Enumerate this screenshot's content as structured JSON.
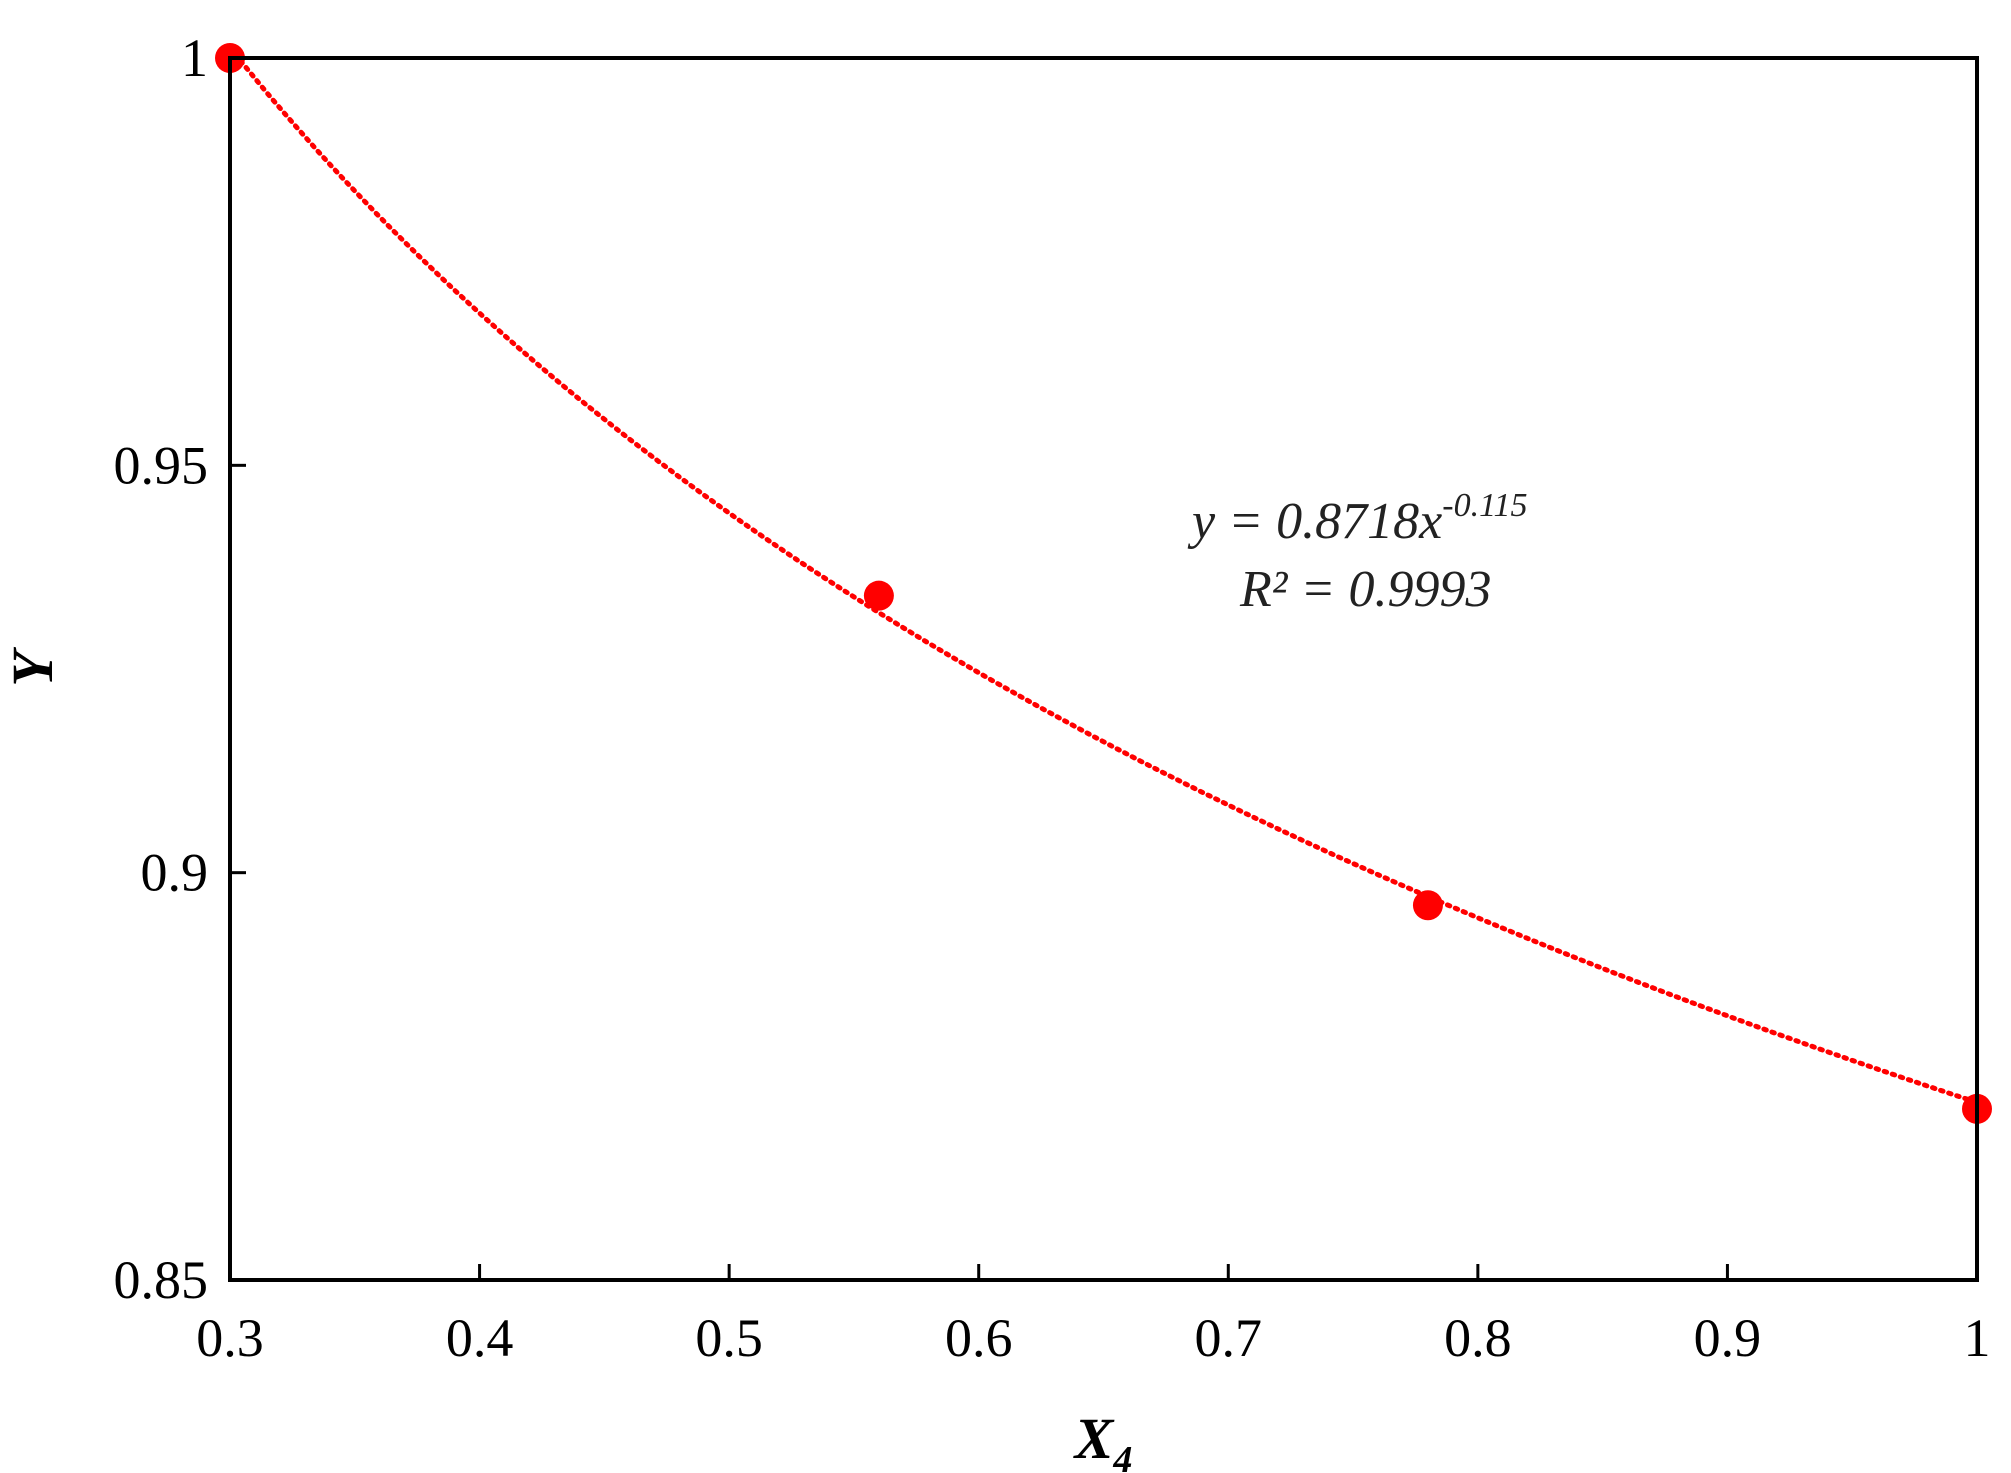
{
  "chart_data": {
    "type": "scatter",
    "title": "",
    "xlabel": "X",
    "xlabel_subscript": "4",
    "ylabel": "Y",
    "xlim": [
      0.3,
      1.0
    ],
    "ylim": [
      0.85,
      1.0
    ],
    "x_ticks": [
      0.3,
      0.4,
      0.5,
      0.6,
      0.7,
      0.8,
      0.9,
      1.0
    ],
    "x_tick_labels": [
      "0.3",
      "0.4",
      "0.5",
      "0.6",
      "0.7",
      "0.8",
      "0.9",
      "1"
    ],
    "y_ticks": [
      0.85,
      0.9,
      0.95,
      1.0
    ],
    "y_tick_labels": [
      "0.85",
      "0.9",
      "0.95",
      "1"
    ],
    "grid": false,
    "legend": "none",
    "series": [
      {
        "x": [
          0.3,
          0.56,
          0.78,
          1.0
        ],
        "y": [
          1.0,
          0.934,
          0.896,
          0.871
        ],
        "color": "#ff0000",
        "marker": "circle"
      }
    ],
    "trendline": {
      "type": "power",
      "a": 0.8718,
      "b": -0.115,
      "color": "#ff0000",
      "style": "dotted"
    },
    "annotations": {
      "equation_prefix": "y = 0.8718x",
      "equation_exponent": "-0.115",
      "r_squared": "R² = 0.9993"
    }
  }
}
